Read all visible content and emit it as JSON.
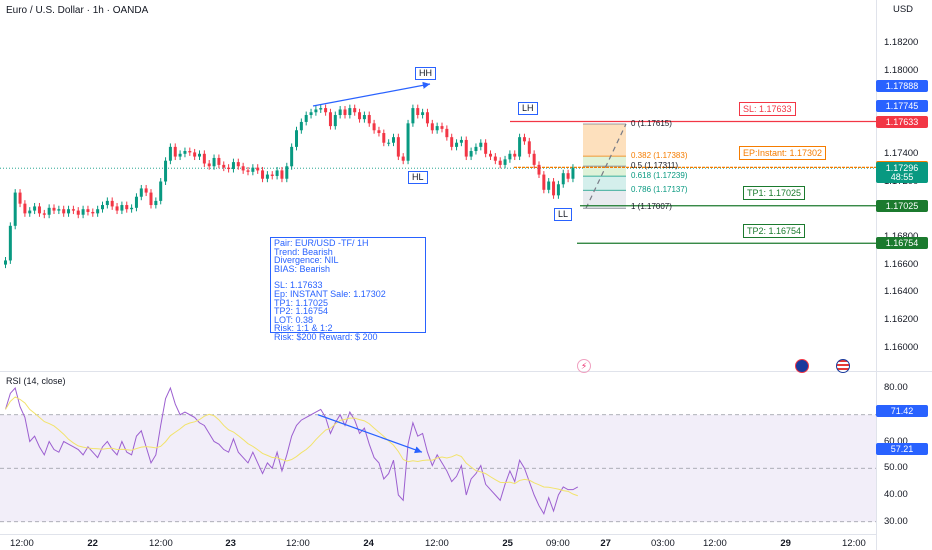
{
  "chart_title": "Euro / U.S. Dollar · 1h · OANDA",
  "currency_button": "USD",
  "price_axis": [
    {
      "label": "1.18200",
      "v": 1.182
    },
    {
      "label": "1.18000",
      "v": 1.18
    },
    {
      "label": "1.17400",
      "v": 1.174
    },
    {
      "label": "1.17200",
      "v": 1.172
    },
    {
      "label": "1.16800",
      "v": 1.168
    },
    {
      "label": "1.16600",
      "v": 1.166
    },
    {
      "label": "1.16400",
      "v": 1.164
    },
    {
      "label": "1.16200",
      "v": 1.162
    },
    {
      "label": "1.16000",
      "v": 1.16
    }
  ],
  "price_tags": [
    {
      "text": "1.17888",
      "color": "#2962ff",
      "v": 1.17888
    },
    {
      "text": "1.17745",
      "color": "#2962ff",
      "v": 1.17745
    },
    {
      "text": "1.17633",
      "color": "#f23645",
      "v": 1.17633
    },
    {
      "text": "1.17302",
      "color": "#f57c00",
      "v": 1.17302
    },
    {
      "text": "1.17296",
      "color": "#089981",
      "v": 1.17296
    },
    {
      "text": "48:55",
      "color": "#089981",
      "v": 1.1723
    },
    {
      "text": "1.17025",
      "color": "#1b7a2e",
      "v": 1.17025
    },
    {
      "text": "1.16754",
      "color": "#1b7a2e",
      "v": 1.16754
    }
  ],
  "rsi": {
    "title": "RSI (14, close)",
    "axis": [
      {
        "label": "80.00",
        "v": 80
      },
      {
        "label": "60.00",
        "v": 60
      },
      {
        "label": "50.00",
        "v": 50
      },
      {
        "label": "40.00",
        "v": 40
      },
      {
        "label": "30.00",
        "v": 30
      }
    ],
    "tags": [
      {
        "text": "71.42",
        "color": "#2962ff",
        "v": 71.42
      },
      {
        "text": "57.21",
        "color": "#2962ff",
        "v": 57.21
      }
    ]
  },
  "x_axis": [
    {
      "label": "12:00",
      "bold": false
    },
    {
      "label": "22",
      "bold": true
    },
    {
      "label": "12:00",
      "bold": false
    },
    {
      "label": "23",
      "bold": true
    },
    {
      "label": "12:00",
      "bold": false
    },
    {
      "label": "24",
      "bold": true
    },
    {
      "label": "12:00",
      "bold": false
    },
    {
      "label": "25",
      "bold": true
    },
    {
      "label": "09:00",
      "bold": false
    },
    {
      "label": "27",
      "bold": true
    },
    {
      "label": "03:00",
      "bold": false
    },
    {
      "label": "12:00",
      "bold": false
    },
    {
      "label": "29",
      "bold": true
    },
    {
      "label": "12:00",
      "bold": false
    }
  ],
  "levels": {
    "sl": "SL: 1.17633",
    "ep": "EP:Instant: 1.17302",
    "tp1": "TP1: 1.17025",
    "tp2": "TP2: 1.16754"
  },
  "patterns": {
    "hh": "HH",
    "lh": "LH",
    "hl": "HL",
    "ll": "LL"
  },
  "fib": [
    {
      "text": "0 (1.17615)",
      "color": "#131722"
    },
    {
      "text": "0.382 (1.17383)",
      "color": "#f57c00"
    },
    {
      "text": "0.5 (1.17311)",
      "color": "#131722"
    },
    {
      "text": "0.618 (1.17239)",
      "color": "#089981"
    },
    {
      "text": "0.786 (1.17137)",
      "color": "#089981"
    },
    {
      "text": "1 (1.17007)",
      "color": "#131722"
    }
  ],
  "info_box": [
    "Pair: EUR/USD -TF/ 1H",
    "Trend: Bearish",
    "Divergence: NIL",
    "BIAS: Bearish",
    "",
    "SL: 1.17633",
    "Ep: INSTANT Sale: 1.17302",
    "TP1: 1.17025",
    "TP2: 1.16754",
    "LOT:  0.38",
    "Risk:  1:1 & 1:2",
    "Risk: $200 Reward: $ 200"
  ],
  "colors": {
    "up": "#089981",
    "down": "#f23645",
    "accent": "#2962ff",
    "rsi_line": "#9c5fd0",
    "rsi_ma": "#f2e36b"
  }
}
